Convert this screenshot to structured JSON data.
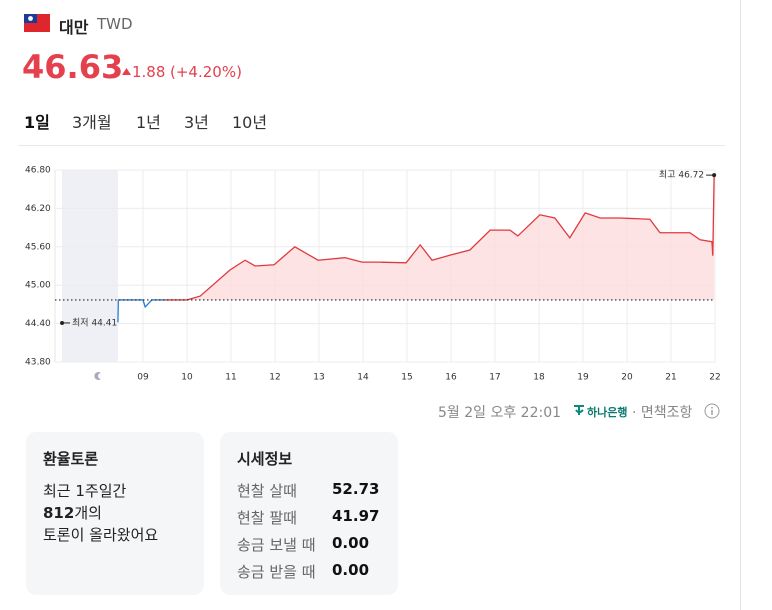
{
  "header": {
    "currency_name": "대만",
    "currency_code": "TWD",
    "rate": "46.63",
    "change": "1.88",
    "change_pct": "(+4.20%)"
  },
  "tabs": [
    "1일",
    "3개월",
    "1년",
    "3년",
    "10년"
  ],
  "chart_data": {
    "type": "line",
    "x": [
      8.43,
      8.44,
      9.0,
      9.05,
      9.2,
      9.5,
      10.0,
      10.3,
      10.98,
      11.32,
      11.55,
      11.98,
      12.45,
      12.98,
      13.59,
      13.98,
      14.39,
      14.98,
      15.3,
      15.57,
      15.98,
      16.43,
      16.89,
      17.34,
      17.52,
      18.02,
      18.36,
      18.7,
      19.05,
      19.39,
      19.84,
      20.52,
      20.75,
      21.43,
      21.66,
      21.93,
      21.95,
      21.98
    ],
    "series": [
      {
        "color": "#2b7bd6",
        "values": [
          44.42,
          44.77,
          44.77,
          44.66,
          44.77,
          44.77,
          null,
          null,
          null,
          null,
          null,
          null,
          null,
          null,
          null,
          null,
          null,
          null,
          null,
          null,
          null,
          null,
          null,
          null,
          null,
          null,
          null,
          null,
          null,
          null,
          null,
          null,
          null,
          null,
          null,
          null,
          null,
          null
        ]
      },
      {
        "color": "#e0393e",
        "fill": "#fcdcdc",
        "values": [
          null,
          null,
          null,
          null,
          null,
          44.77,
          44.77,
          44.83,
          45.24,
          45.39,
          45.3,
          45.32,
          45.6,
          45.39,
          45.43,
          45.36,
          45.36,
          45.35,
          45.63,
          45.39,
          45.47,
          45.55,
          45.86,
          45.86,
          45.77,
          46.1,
          46.05,
          45.74,
          46.13,
          46.05,
          46.05,
          46.03,
          45.82,
          45.82,
          45.71,
          45.68,
          45.46,
          46.72
        ]
      }
    ],
    "baseline": 44.77,
    "shade": [
      7.16,
      8.43
    ],
    "xlim": [
      7,
      22
    ],
    "xticks": [
      {
        "value": 9,
        "label": "09"
      },
      10,
      11,
      12,
      13,
      14,
      15,
      16,
      17,
      18,
      19,
      20,
      21,
      22
    ],
    "ylim": [
      43.8,
      46.8
    ],
    "yticks": [
      {
        "value": 43.8,
        "label": "43.80"
      },
      {
        "value": 44.4,
        "label": "44.40"
      },
      {
        "value": 45.0,
        "label": "45.00"
      },
      {
        "value": 45.6,
        "label": "45.60"
      },
      {
        "value": 46.2,
        "label": "46.20"
      },
      {
        "value": 46.8,
        "label": "46.80"
      }
    ],
    "grid": true,
    "annotations": [
      {
        "text": "최저 44.41",
        "x": 7.16,
        "y": 44.41,
        "side": "right"
      },
      {
        "text": "최고 46.72",
        "x": 21.98,
        "y": 46.72,
        "side": "left"
      }
    ]
  },
  "footer": {
    "timestamp": "5월 2일 오후 22:01",
    "bank": "하나은행",
    "disclaimer": "· 면책조항"
  },
  "discussion": {
    "title": "환율토론",
    "line1": "최근 1주일간",
    "count": "812",
    "count_suffix": "개의",
    "line3": "토론이 올라왔어요"
  },
  "price_info": {
    "title": "시세정보",
    "rows": [
      [
        "현찰 살때",
        "52.73"
      ],
      [
        "현찰 팔때",
        "41.97"
      ],
      [
        "송금 보낼 때",
        "0.00"
      ],
      [
        "송금 받을 때",
        "0.00"
      ]
    ]
  }
}
